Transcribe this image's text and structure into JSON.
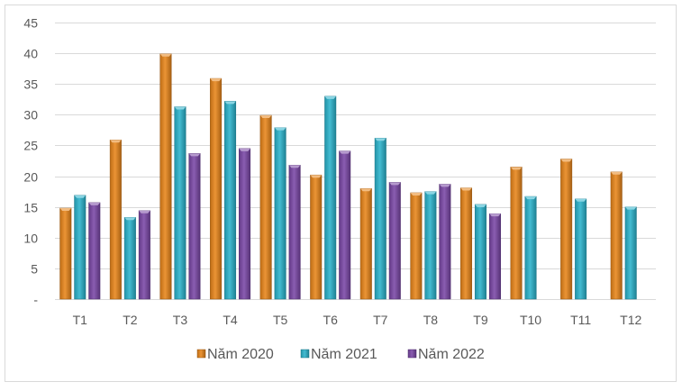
{
  "chart_data": {
    "type": "bar",
    "title": "",
    "xlabel": "",
    "ylabel": "",
    "categories": [
      "T1",
      "T2",
      "T3",
      "T4",
      "T5",
      "T6",
      "T7",
      "T8",
      "T9",
      "T10",
      "T11",
      "T12"
    ],
    "series": [
      {
        "name": "Năm 2020",
        "color": "#E8851A",
        "values": [
          14.8,
          25.9,
          39.9,
          35.9,
          29.9,
          20.2,
          18.0,
          17.3,
          18.1,
          21.5,
          22.8,
          20.7
        ]
      },
      {
        "name": "Năm 2021",
        "color": "#2AB3CC",
        "values": [
          16.9,
          13.3,
          31.3,
          32.2,
          27.9,
          33.0,
          26.2,
          17.5,
          15.4,
          16.7,
          16.3,
          15.0
        ]
      },
      {
        "name": "Năm 2022",
        "color": "#7A47A6",
        "values": [
          15.7,
          14.4,
          23.7,
          24.5,
          21.8,
          24.1,
          19.0,
          18.7,
          13.9,
          null,
          null,
          null
        ]
      }
    ],
    "ylim": [
      0,
      45
    ],
    "yticks": [
      0,
      5,
      10,
      15,
      20,
      25,
      30,
      35,
      40,
      45
    ],
    "ytick_labels": [
      "-",
      "5",
      "10",
      "15",
      "20",
      "25",
      "30",
      "35",
      "40",
      "45"
    ],
    "grid": true,
    "legend_position": "bottom"
  }
}
